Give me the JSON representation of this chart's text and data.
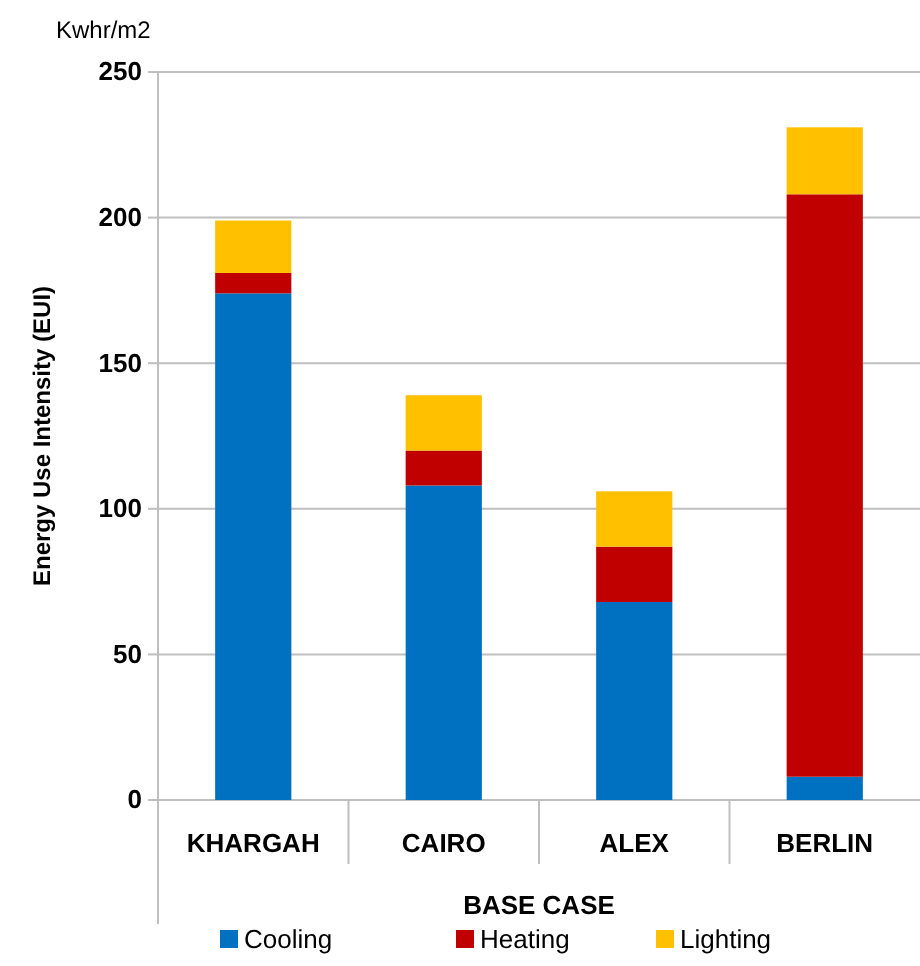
{
  "chart_data": {
    "type": "bar",
    "stacked": true,
    "xlabel": "BASE CASE",
    "ylabel": "Energy Use Intensity (EUI)",
    "annotations": [
      "Kwhr/m2"
    ],
    "categories": [
      "KHARGAH",
      "CAIRO",
      "ALEX",
      "BERLIN"
    ],
    "series": [
      {
        "name": "Cooling",
        "color": "#0070c0",
        "values": [
          174,
          108,
          68,
          8
        ]
      },
      {
        "name": "Heating",
        "color": "#c00000",
        "values": [
          7,
          12,
          19,
          200
        ]
      },
      {
        "name": "Lighting",
        "color": "#ffc000",
        "values": [
          18,
          19,
          19,
          23
        ]
      }
    ],
    "ylim": [
      0,
      250
    ],
    "yticks": [
      0,
      50,
      100,
      150,
      200,
      250
    ],
    "grid": "y",
    "legend": "bottom"
  }
}
